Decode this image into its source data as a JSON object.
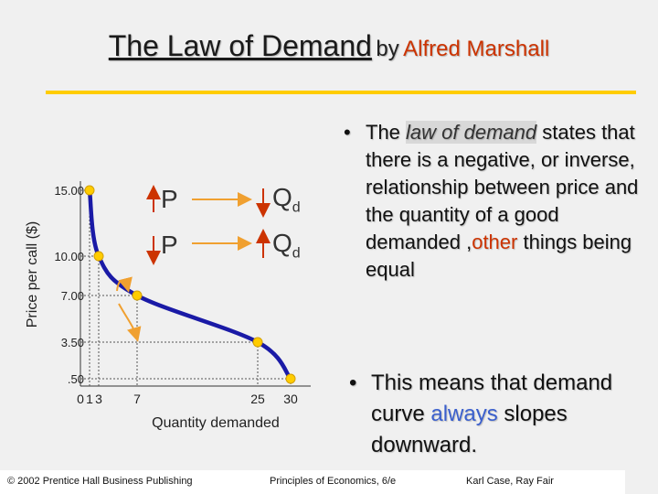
{
  "title": {
    "main": "The Law of Demand",
    "by": "by",
    "author": "Alfred Marshall"
  },
  "legend": {
    "row1": {
      "left": "P",
      "right": "Q",
      "sub": "d"
    },
    "row2": {
      "left": "P",
      "right": "Q",
      "sub": "d"
    }
  },
  "bullet1": {
    "pre": "The",
    "highlight": "law of demand",
    "text": "states that there is a negative, or inverse, relationship between price and the quantity of a good demanded ,",
    "accent": "other",
    "post": "things being equal"
  },
  "bullet2": {
    "pre": "This means that demand curve",
    "accent": "always",
    "post": "slopes downward."
  },
  "footer": {
    "left": "© 2002 Prentice Hall Business Publishing",
    "center": "Principles of Economics, 6/e",
    "right": "Karl Case, Ray Fair"
  },
  "colors": {
    "curve": "#1a1aa6",
    "point": "#ffcc00",
    "accent": "#cc3300",
    "arrow": "#f0a030",
    "rule": "#ffcc00"
  },
  "chart_data": {
    "type": "line",
    "xlabel": "Quantity demanded",
    "ylabel": "Price per call ($)",
    "x_ticks": [
      0,
      1,
      3,
      7,
      25,
      30
    ],
    "x_tick_labels": [
      "0",
      "1",
      "3",
      "7",
      "25",
      "30"
    ],
    "y_ticks": [
      0.5,
      3.5,
      7,
      10,
      15
    ],
    "y_tick_labels": [
      ".50",
      "3.50",
      "7.00",
      "10.00",
      "15.00"
    ],
    "series": [
      {
        "points": [
          {
            "x": 1,
            "y": 15.0
          },
          {
            "x": 3,
            "y": 10.0
          },
          {
            "x": 7,
            "y": 7.0
          },
          {
            "x": 25,
            "y": 3.5
          },
          {
            "x": 30,
            "y": 0.5
          }
        ]
      }
    ],
    "grid": false
  }
}
